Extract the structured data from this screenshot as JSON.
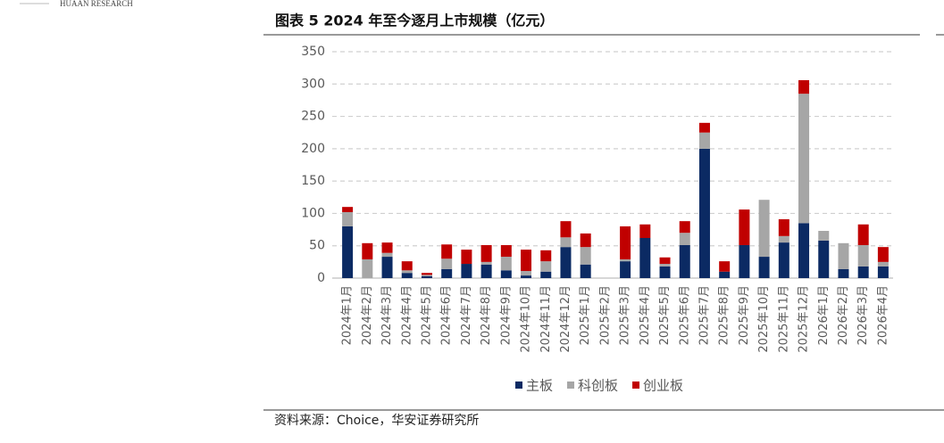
{
  "header": "HUAAN RESEARCH",
  "chart_data": {
    "type": "stacked-bar",
    "title": "图表 5 2024 年至今逐月上市规模（亿元）",
    "categories": [
      "2024年1月",
      "2024年2月",
      "2024年3月",
      "2024年4月",
      "2024年5月",
      "2024年6月",
      "2024年7月",
      "2024年8月",
      "2024年9月",
      "2024年10月",
      "2024年11月",
      "2024年12月",
      "2025年1月",
      "2025年2月",
      "2025年3月",
      "2025年4月",
      "2025年5月",
      "2025年6月",
      "2025年7月",
      "2025年8月",
      "2025年9月",
      "2025年10月",
      "2025年11月",
      "2025年12月",
      "2026年1月",
      "2026年2月",
      "2026年3月",
      "2026年4月"
    ],
    "series": [
      {
        "name": "主板",
        "color": "#0b2a63",
        "values": [
          80,
          0,
          33,
          8,
          3,
          14,
          22,
          21,
          12,
          4,
          10,
          48,
          21,
          0,
          26,
          62,
          18,
          51,
          200,
          10,
          51,
          33,
          55,
          85,
          58,
          14,
          18,
          18
        ]
      },
      {
        "name": "科创板",
        "color": "#a6a6a6",
        "values": [
          22,
          29,
          6,
          4,
          2,
          16,
          0,
          4,
          21,
          7,
          16,
          15,
          27,
          0,
          3,
          0,
          4,
          19,
          25,
          0,
          0,
          88,
          10,
          200,
          15,
          40,
          33,
          7
        ]
      },
      {
        "name": "创业板",
        "color": "#c00000",
        "values": [
          8,
          25,
          16,
          14,
          3,
          22,
          22,
          26,
          18,
          33,
          17,
          25,
          21,
          0,
          51,
          21,
          10,
          18,
          15,
          16,
          55,
          0,
          26,
          21,
          0,
          0,
          32,
          23
        ]
      }
    ],
    "ylim": [
      0,
      350
    ],
    "yticks": [
      0,
      50,
      100,
      150,
      200,
      250,
      300,
      350
    ],
    "grid": true,
    "legend": "bottom"
  },
  "source": "资料来源：Choice，华安证券研究所"
}
